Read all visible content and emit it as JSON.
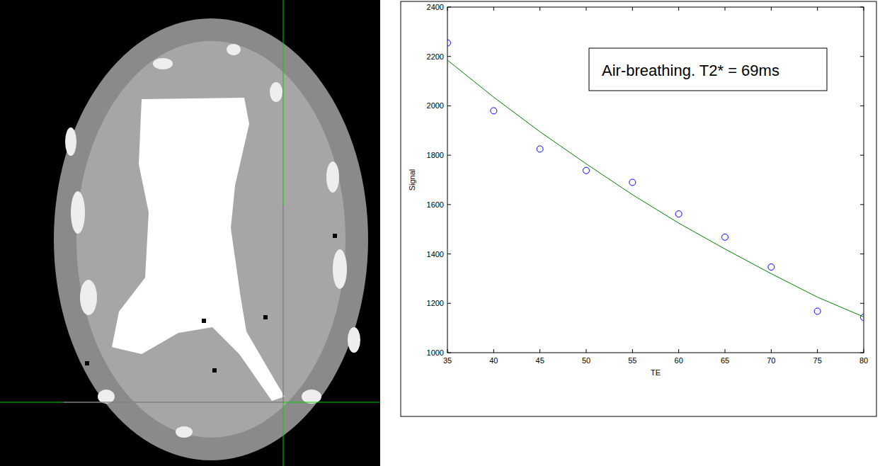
{
  "chart_data": {
    "type": "scatter",
    "x_label": "TE",
    "y_label": "Signal",
    "annotations": [
      "Air-breathing. T2* = 69ms"
    ],
    "x": [
      35,
      40,
      45,
      50,
      55,
      60,
      65,
      70,
      75,
      80
    ],
    "series": [
      {
        "type": "scatter",
        "color": "#0000ff",
        "marker": "circle",
        "values": [
          2255,
          1980,
          1825,
          1738,
          1690,
          1562,
          1468,
          1347,
          1168,
          1143
        ]
      },
      {
        "type": "line",
        "color": "#008000",
        "line_style": "solid",
        "values": [
          2185,
          2035,
          1895,
          1765,
          1640,
          1525,
          1420,
          1320,
          1225,
          1145
        ]
      }
    ],
    "xlim": [
      35,
      80
    ],
    "xticks": [
      35,
      40,
      45,
      50,
      55,
      60,
      65,
      70,
      75,
      80
    ],
    "ylim": [
      1000,
      2400
    ],
    "yticks": [
      1000,
      1200,
      1400,
      1600,
      1800,
      2000,
      2200,
      2400
    ],
    "grid": false
  }
}
